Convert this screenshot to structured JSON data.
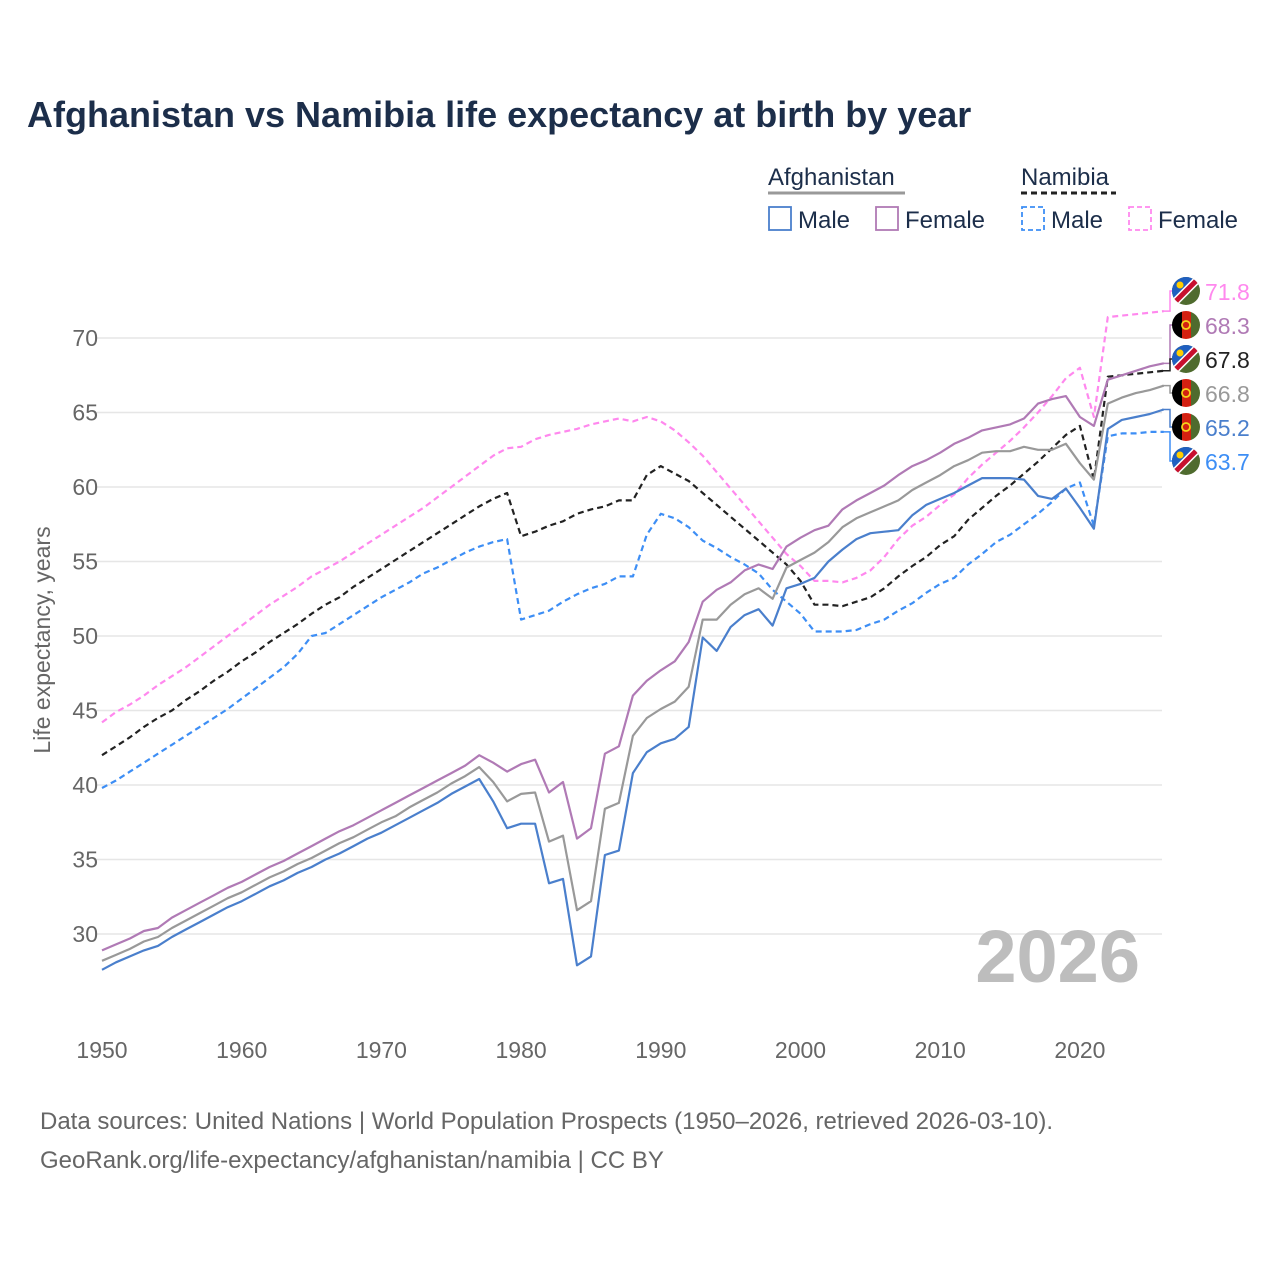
{
  "title": "Afghanistan vs Namibia life expectancy at birth by year",
  "source_line1": "Data sources: United Nations | World Population Prospects (1950–2026, retrieved 2026-03-10).",
  "source_line2": "GeoRank.org/life-expectancy/afghanistan/namibia | CC BY",
  "year_watermark": "2026",
  "legend": {
    "groups": [
      {
        "name": "Afghanistan",
        "items": [
          "Male",
          "Female"
        ]
      },
      {
        "name": "Namibia",
        "items": [
          "Male",
          "Female"
        ]
      }
    ]
  },
  "chart_data": {
    "type": "line",
    "title": "Afghanistan vs Namibia life expectancy at birth by year",
    "xlabel": "",
    "ylabel": "Life expectancy, years",
    "xlim": [
      1950,
      2026
    ],
    "ylim": [
      25,
      74
    ],
    "xticks": [
      1950,
      1960,
      1970,
      1980,
      1990,
      2000,
      2010,
      2020
    ],
    "yticks": [
      30,
      35,
      40,
      45,
      50,
      55,
      60,
      65,
      70
    ],
    "grid": true,
    "legend_position": "top-right",
    "x_start": 1950,
    "series": [
      {
        "name": "Namibia Female",
        "country": "Namibia",
        "flag": "namibia-flag",
        "color": "#ff88ee",
        "dashed": true,
        "end_label": "71.8",
        "values": [
          44.2,
          44.9,
          45.4,
          46.0,
          46.7,
          47.3,
          47.9,
          48.6,
          49.3,
          50.0,
          50.7,
          51.4,
          52.1,
          52.7,
          53.3,
          54.0,
          54.5,
          55.0,
          55.6,
          56.2,
          56.8,
          57.4,
          58.0,
          58.6,
          59.3,
          60.0,
          60.7,
          61.4,
          62.1,
          62.6,
          62.7,
          63.2,
          63.5,
          63.7,
          63.9,
          64.2,
          64.4,
          64.6,
          64.4,
          64.7,
          64.4,
          63.8,
          63.0,
          62.1,
          61.0,
          59.9,
          58.8,
          57.7,
          56.6,
          55.5,
          54.7,
          53.7,
          53.7,
          53.6,
          53.9,
          54.4,
          55.3,
          56.5,
          57.4,
          58.0,
          58.8,
          59.5,
          60.6,
          61.5,
          62.3,
          63.1,
          64.0,
          65.0,
          66.1,
          67.3,
          68.0,
          64.7,
          71.4,
          71.5,
          71.6,
          71.7,
          71.8
        ]
      },
      {
        "name": "Afghanistan Female",
        "country": "Afghanistan",
        "flag": "afghanistan-flag",
        "color": "#b07ab5",
        "dashed": false,
        "end_label": "68.3",
        "values": [
          28.9,
          29.3,
          29.7,
          30.2,
          30.4,
          31.1,
          31.6,
          32.1,
          32.6,
          33.1,
          33.5,
          34.0,
          34.5,
          34.9,
          35.4,
          35.9,
          36.4,
          36.9,
          37.3,
          37.8,
          38.3,
          38.8,
          39.3,
          39.8,
          40.3,
          40.8,
          41.3,
          42.0,
          41.5,
          40.9,
          41.4,
          41.7,
          39.5,
          40.2,
          36.4,
          37.1,
          42.1,
          42.6,
          46.0,
          47.0,
          47.7,
          48.3,
          49.6,
          52.3,
          53.1,
          53.6,
          54.4,
          54.8,
          54.5,
          56.0,
          56.6,
          57.1,
          57.4,
          58.5,
          59.1,
          59.6,
          60.1,
          60.8,
          61.4,
          61.8,
          62.3,
          62.9,
          63.3,
          63.8,
          64.0,
          64.2,
          64.6,
          65.6,
          65.9,
          66.1,
          64.7,
          64.1,
          67.2,
          67.5,
          67.8,
          68.1,
          68.3
        ]
      },
      {
        "name": "Namibia",
        "country": "Namibia",
        "flag": "namibia-flag",
        "color": "#222222",
        "dashed": true,
        "end_label": "67.8",
        "values": [
          42.0,
          42.6,
          43.2,
          43.9,
          44.5,
          45.0,
          45.7,
          46.3,
          47.0,
          47.6,
          48.3,
          48.9,
          49.6,
          50.2,
          50.8,
          51.5,
          52.1,
          52.6,
          53.3,
          53.9,
          54.5,
          55.1,
          55.7,
          56.3,
          56.9,
          57.5,
          58.1,
          58.7,
          59.2,
          59.6,
          56.7,
          57.0,
          57.4,
          57.7,
          58.2,
          58.5,
          58.7,
          59.1,
          59.1,
          60.8,
          61.4,
          60.9,
          60.4,
          59.6,
          58.8,
          58.0,
          57.2,
          56.4,
          55.6,
          54.8,
          53.7,
          52.1,
          52.1,
          52.0,
          52.3,
          52.6,
          53.2,
          54.0,
          54.7,
          55.3,
          56.1,
          56.7,
          57.8,
          58.6,
          59.4,
          60.1,
          60.9,
          61.7,
          62.6,
          63.5,
          64.1,
          60.5,
          67.4,
          67.5,
          67.6,
          67.7,
          67.8
        ]
      },
      {
        "name": "Afghanistan",
        "country": "Afghanistan",
        "flag": "afghanistan-flag",
        "color": "#999999",
        "dashed": false,
        "end_label": "66.8",
        "values": [
          28.2,
          28.6,
          29.0,
          29.5,
          29.8,
          30.4,
          30.9,
          31.4,
          31.9,
          32.4,
          32.8,
          33.3,
          33.8,
          34.2,
          34.7,
          35.1,
          35.6,
          36.1,
          36.5,
          37.0,
          37.5,
          37.9,
          38.5,
          39.0,
          39.5,
          40.1,
          40.6,
          41.2,
          40.2,
          38.9,
          39.4,
          39.5,
          36.2,
          36.6,
          31.6,
          32.2,
          38.4,
          38.8,
          43.3,
          44.5,
          45.1,
          45.6,
          46.6,
          51.1,
          51.1,
          52.1,
          52.8,
          53.2,
          52.5,
          54.6,
          55.1,
          55.6,
          56.3,
          57.3,
          57.9,
          58.3,
          58.7,
          59.1,
          59.8,
          60.3,
          60.8,
          61.4,
          61.8,
          62.3,
          62.4,
          62.4,
          62.7,
          62.5,
          62.5,
          62.9,
          61.6,
          60.5,
          65.6,
          66.0,
          66.3,
          66.5,
          66.8
        ]
      },
      {
        "name": "Afghanistan Male",
        "country": "Afghanistan",
        "flag": "afghanistan-flag",
        "color": "#4a7fcc",
        "dashed": false,
        "end_label": "65.2",
        "values": [
          27.6,
          28.1,
          28.5,
          28.9,
          29.2,
          29.8,
          30.3,
          30.8,
          31.3,
          31.8,
          32.2,
          32.7,
          33.2,
          33.6,
          34.1,
          34.5,
          35.0,
          35.4,
          35.9,
          36.4,
          36.8,
          37.3,
          37.8,
          38.3,
          38.8,
          39.4,
          39.9,
          40.4,
          38.9,
          37.1,
          37.4,
          37.4,
          33.4,
          33.7,
          27.9,
          28.5,
          35.3,
          35.6,
          40.8,
          42.2,
          42.8,
          43.1,
          43.9,
          49.9,
          49.0,
          50.6,
          51.4,
          51.8,
          50.7,
          53.2,
          53.5,
          53.9,
          55.0,
          55.8,
          56.5,
          56.9,
          57.0,
          57.1,
          58.1,
          58.8,
          59.2,
          59.6,
          60.1,
          60.6,
          60.6,
          60.6,
          60.5,
          59.4,
          59.2,
          59.9,
          58.6,
          57.2,
          63.9,
          64.5,
          64.7,
          64.9,
          65.2
        ]
      },
      {
        "name": "Namibia Male",
        "country": "Namibia",
        "flag": "namibia-flag",
        "color": "#3d8ef5",
        "dashed": true,
        "end_label": "63.7",
        "values": [
          39.8,
          40.3,
          40.9,
          41.5,
          42.1,
          42.7,
          43.3,
          43.9,
          44.5,
          45.1,
          45.8,
          46.5,
          47.2,
          47.9,
          48.8,
          50.0,
          50.2,
          50.8,
          51.4,
          52.0,
          52.6,
          53.1,
          53.6,
          54.2,
          54.6,
          55.1,
          55.6,
          56.0,
          56.3,
          56.5,
          51.1,
          51.4,
          51.7,
          52.3,
          52.8,
          53.2,
          53.5,
          54.0,
          54.0,
          56.8,
          58.2,
          57.9,
          57.3,
          56.4,
          55.9,
          55.3,
          54.8,
          54.2,
          53.1,
          52.3,
          51.5,
          50.3,
          50.3,
          50.3,
          50.4,
          50.8,
          51.1,
          51.7,
          52.2,
          52.9,
          53.5,
          53.9,
          54.8,
          55.5,
          56.3,
          56.8,
          57.5,
          58.2,
          59.0,
          59.9,
          60.3,
          57.4,
          63.4,
          63.6,
          63.6,
          63.7,
          63.7
        ]
      }
    ]
  }
}
